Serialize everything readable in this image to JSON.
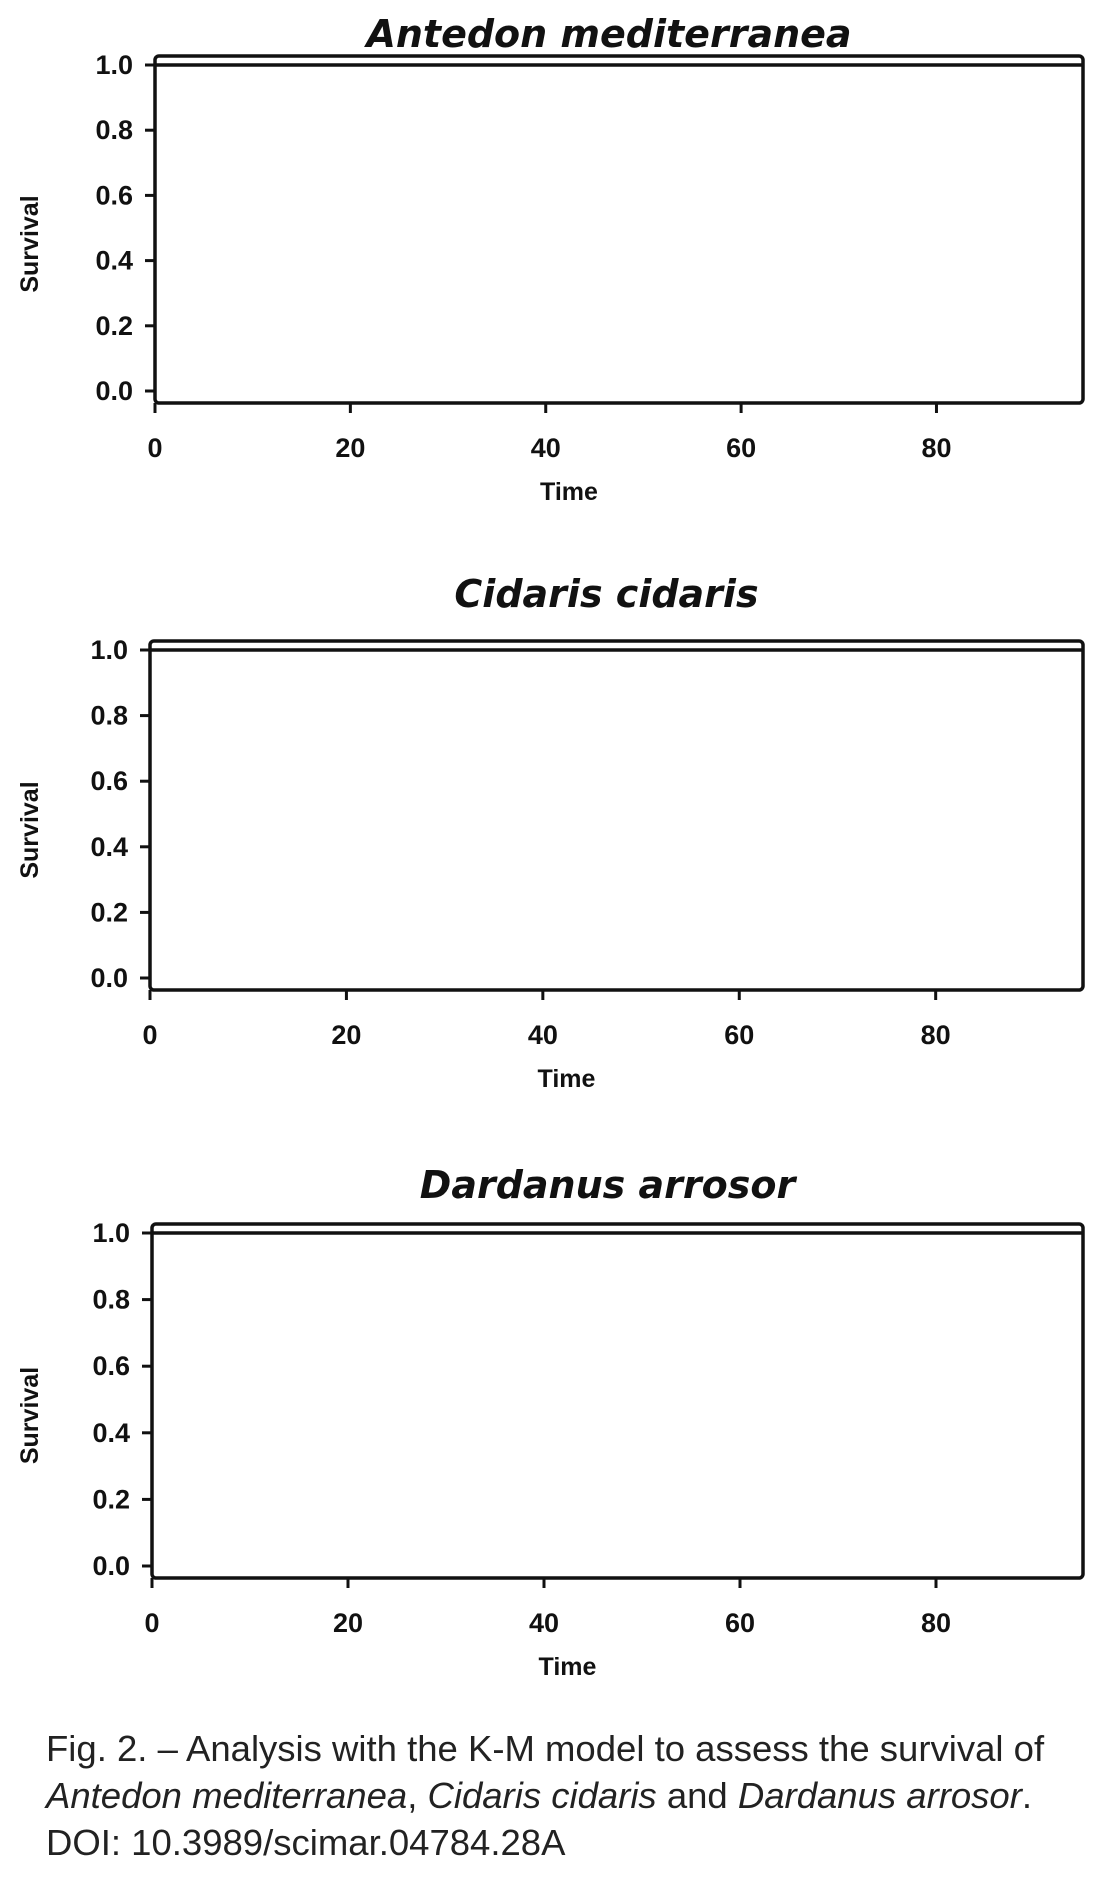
{
  "chart_data": [
    {
      "type": "line",
      "title": "Antedon mediterranea",
      "xlabel": "Time",
      "ylabel": "Survival",
      "xlim": [
        0,
        95
      ],
      "ylim": [
        0,
        1.0
      ],
      "xticks": [
        "0",
        "20",
        "40",
        "60",
        "80"
      ],
      "yticks": [
        "0.0",
        "0.2",
        "0.4",
        "0.6",
        "0.8",
        "1.0"
      ],
      "grid": false,
      "series": [
        {
          "x": [
            0,
            95
          ],
          "y": [
            1.0,
            1.0
          ]
        }
      ]
    },
    {
      "type": "line",
      "title": "Cidaris cidaris",
      "xlabel": "Time",
      "ylabel": "Survival",
      "xlim": [
        0,
        95
      ],
      "ylim": [
        0,
        1.0
      ],
      "xticks": [
        "0",
        "20",
        "40",
        "60",
        "80"
      ],
      "yticks": [
        "0.0",
        "0.2",
        "0.4",
        "0.6",
        "0.8",
        "1.0"
      ],
      "grid": false,
      "series": [
        {
          "x": [
            0,
            95
          ],
          "y": [
            1.0,
            1.0
          ]
        }
      ]
    },
    {
      "type": "line",
      "title": "Dardanus arrosor",
      "xlabel": "Time",
      "ylabel": "Survival",
      "xlim": [
        0,
        95
      ],
      "ylim": [
        0,
        1.0
      ],
      "xticks": [
        "0",
        "20",
        "40",
        "60",
        "80"
      ],
      "yticks": [
        "0.0",
        "0.2",
        "0.4",
        "0.6",
        "0.8",
        "1.0"
      ],
      "grid": false,
      "series": [
        {
          "x": [
            0,
            95
          ],
          "y": [
            1.0,
            1.0
          ]
        }
      ]
    }
  ],
  "caption": {
    "prefix": "Fig. 2. – Analysis with the K-M model to assess the survival of ",
    "species_1": "Antedon mediterranea",
    "sep_1": ", ",
    "species_2": "Cidaris cidaris",
    "sep_2": " and ",
    "species_3": "Dardanus arrosor",
    "suffix": ". DOI: 10.3989/scimar.04784.28A"
  }
}
